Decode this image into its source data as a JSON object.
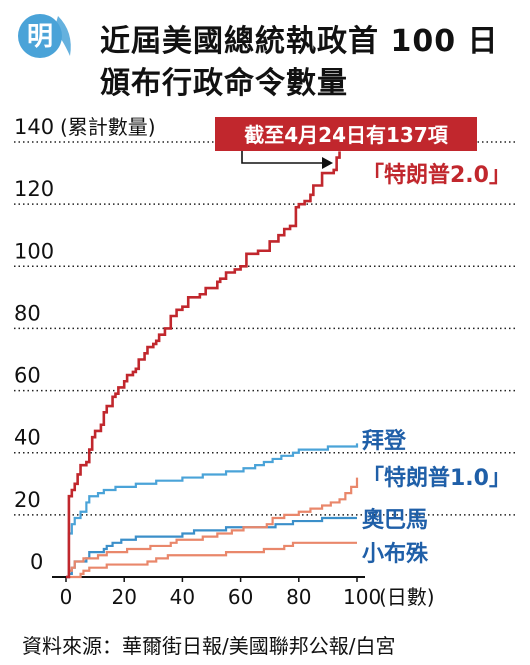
{
  "title_lines": [
    "近屆美國總統執政首 100 日",
    "頒布行政命令數量"
  ],
  "logo_text": "明",
  "source": "資料來源：華爾街日報/美國聯邦公報/白宮",
  "colors": {
    "trump2": "#c1272d",
    "biden": "#4aa3d8",
    "trump1": "#e9876b",
    "obama": "#3b8fc9",
    "bush": "#e9876b",
    "grid": "#222222",
    "label_blue": "#1f5fa8",
    "callout_bg": "#c1272d",
    "logo": "#4aa3d8"
  },
  "chart_data": {
    "type": "line",
    "xlabel": "(日數)",
    "ylabel": "(累計數量)",
    "xlim": [
      0,
      100
    ],
    "ylim": [
      0,
      140
    ],
    "xticks": [
      0,
      20,
      40,
      60,
      80,
      100
    ],
    "yticks": [
      0,
      20,
      40,
      60,
      80,
      100,
      120,
      140
    ],
    "grid": "horizontal dotted",
    "annotation": "截至4月24日有137項",
    "series": [
      {
        "name": "「特朗普2.0」",
        "color_key": "trump2",
        "points": [
          [
            0,
            0
          ],
          [
            1,
            26
          ],
          [
            2,
            28
          ],
          [
            3,
            30
          ],
          [
            4,
            33
          ],
          [
            5,
            36
          ],
          [
            7,
            37
          ],
          [
            8,
            41
          ],
          [
            9,
            45
          ],
          [
            10,
            47
          ],
          [
            12,
            49
          ],
          [
            13,
            53
          ],
          [
            14,
            55
          ],
          [
            16,
            58
          ],
          [
            17,
            59
          ],
          [
            18,
            61
          ],
          [
            20,
            63
          ],
          [
            21,
            65
          ],
          [
            23,
            66
          ],
          [
            24,
            67
          ],
          [
            25,
            70
          ],
          [
            27,
            72
          ],
          [
            28,
            74
          ],
          [
            30,
            75
          ],
          [
            31,
            76
          ],
          [
            32,
            78
          ],
          [
            34,
            80
          ],
          [
            36,
            84
          ],
          [
            38,
            86
          ],
          [
            40,
            87
          ],
          [
            42,
            90
          ],
          [
            46,
            91
          ],
          [
            48,
            93
          ],
          [
            52,
            95
          ],
          [
            53,
            96
          ],
          [
            55,
            98
          ],
          [
            58,
            99
          ],
          [
            60,
            100
          ],
          [
            62,
            104
          ],
          [
            66,
            105
          ],
          [
            70,
            108
          ],
          [
            73,
            110
          ],
          [
            75,
            112
          ],
          [
            77,
            113
          ],
          [
            79,
            119
          ],
          [
            80,
            120
          ],
          [
            82,
            121
          ],
          [
            84,
            123
          ],
          [
            85,
            126
          ],
          [
            88,
            130
          ],
          [
            92,
            131
          ],
          [
            93,
            135
          ],
          [
            94,
            137
          ]
        ]
      },
      {
        "name": "拜登",
        "color_key": "biden",
        "points": [
          [
            0,
            0
          ],
          [
            1,
            14
          ],
          [
            2,
            17
          ],
          [
            3,
            19
          ],
          [
            5,
            21
          ],
          [
            7,
            24
          ],
          [
            8,
            26
          ],
          [
            11,
            27
          ],
          [
            13,
            28
          ],
          [
            17,
            29
          ],
          [
            24,
            30
          ],
          [
            31,
            31
          ],
          [
            40,
            32
          ],
          [
            47,
            33
          ],
          [
            55,
            34
          ],
          [
            61,
            35
          ],
          [
            65,
            36
          ],
          [
            68,
            37
          ],
          [
            71,
            38
          ],
          [
            74,
            39
          ],
          [
            78,
            40
          ],
          [
            80,
            41
          ],
          [
            90,
            42
          ],
          [
            100,
            43
          ]
        ]
      },
      {
        "name": "「特朗普1.0」",
        "color_key": "trump1",
        "points": [
          [
            0,
            0
          ],
          [
            1,
            2
          ],
          [
            2,
            3
          ],
          [
            3,
            5
          ],
          [
            6,
            6
          ],
          [
            11,
            7
          ],
          [
            14,
            8
          ],
          [
            21,
            9
          ],
          [
            29,
            10
          ],
          [
            36,
            11
          ],
          [
            38,
            12
          ],
          [
            47,
            13
          ],
          [
            52,
            14
          ],
          [
            57,
            15
          ],
          [
            61,
            16
          ],
          [
            69,
            17
          ],
          [
            71,
            19
          ],
          [
            75,
            20
          ],
          [
            80,
            21
          ],
          [
            84,
            22
          ],
          [
            88,
            23
          ],
          [
            91,
            24
          ],
          [
            94,
            25
          ],
          [
            96,
            27
          ],
          [
            98,
            29
          ],
          [
            100,
            32
          ]
        ]
      },
      {
        "name": "奧巴馬",
        "color_key": "obama",
        "points": [
          [
            0,
            0
          ],
          [
            1,
            1
          ],
          [
            2,
            3
          ],
          [
            3,
            5
          ],
          [
            7,
            6
          ],
          [
            8,
            8
          ],
          [
            13,
            9
          ],
          [
            14,
            10
          ],
          [
            16,
            11
          ],
          [
            19,
            12
          ],
          [
            24,
            13
          ],
          [
            40,
            14
          ],
          [
            44,
            15
          ],
          [
            55,
            16
          ],
          [
            72,
            17
          ],
          [
            78,
            18
          ],
          [
            88,
            19
          ],
          [
            100,
            19
          ]
        ]
      },
      {
        "name": "小布殊",
        "color_key": "bush",
        "points": [
          [
            0,
            0
          ],
          [
            5,
            1
          ],
          [
            6,
            2
          ],
          [
            8,
            3
          ],
          [
            14,
            4
          ],
          [
            28,
            5
          ],
          [
            31,
            6
          ],
          [
            35,
            7
          ],
          [
            55,
            8
          ],
          [
            68,
            9
          ],
          [
            75,
            10
          ],
          [
            78,
            11
          ],
          [
            100,
            11
          ]
        ]
      }
    ]
  }
}
